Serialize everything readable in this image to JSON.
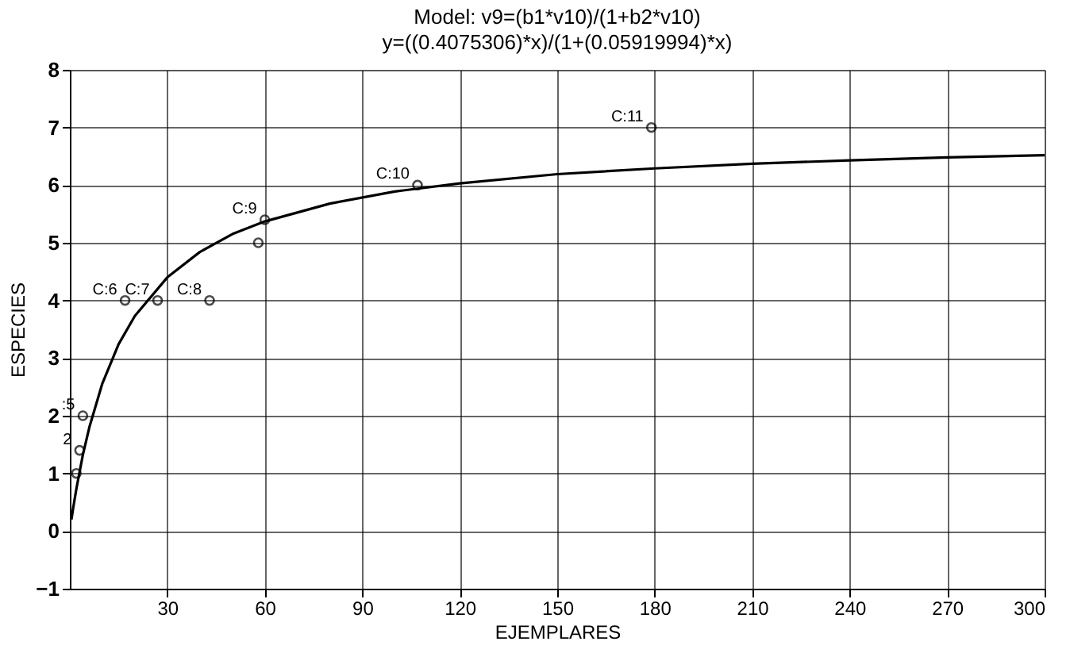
{
  "chart_data": {
    "type": "scatter",
    "title": "Model: v9=(b1*v10)/(1+b2*v10)",
    "subtitle": "y=((0.4075306)*x)/(1+(0.05919994)*x)",
    "xlabel": "EJEMPLARES",
    "ylabel": "ESPECIES",
    "xlim": [
      0,
      300
    ],
    "xticks": [
      30,
      60,
      90,
      120,
      150,
      180,
      210,
      240,
      270,
      300
    ],
    "ylim": [
      -1,
      8
    ],
    "yticks": [
      -1,
      0,
      1,
      2,
      3,
      4,
      5,
      6,
      7,
      8
    ],
    "grid": true,
    "marker": "circle",
    "series": [
      {
        "color": "#000000",
        "x": [
          2,
          3,
          4,
          17,
          27,
          43,
          58,
          60,
          107,
          179
        ],
        "values": [
          1,
          1.4,
          2,
          4,
          4,
          4,
          5,
          5.4,
          6,
          7
        ]
      },
      {
        "type": "line",
        "color": "#000000",
        "marker": "none",
        "x": [
          0.5,
          1,
          2,
          4,
          6,
          10,
          15,
          20,
          30,
          40,
          50,
          60,
          80,
          100,
          120,
          150,
          180,
          210,
          240,
          270,
          300
        ],
        "values": [
          0.2,
          0.39,
          0.73,
          1.32,
          1.8,
          2.56,
          3.24,
          3.73,
          4.4,
          4.84,
          5.15,
          5.37,
          5.68,
          5.89,
          6.03,
          6.19,
          6.29,
          6.37,
          6.43,
          6.48,
          6.52
        ]
      }
    ],
    "annotations": [
      {
        "text": "2",
        "x": 3,
        "y": 1.4
      },
      {
        "text": ":5",
        "x": 4,
        "y": 2
      },
      {
        "text": "C:6",
        "x": 17,
        "y": 4
      },
      {
        "text": "C:7",
        "x": 27,
        "y": 4
      },
      {
        "text": "C:8",
        "x": 43,
        "y": 4
      },
      {
        "text": "C:9",
        "x": 60,
        "y": 5.4
      },
      {
        "text": "C:10",
        "x": 107,
        "y": 6
      },
      {
        "text": "C:11",
        "x": 179,
        "y": 7
      }
    ]
  }
}
